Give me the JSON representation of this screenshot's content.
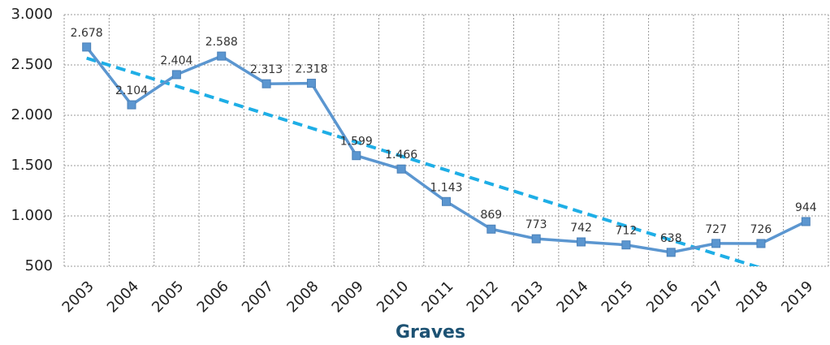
{
  "chart_data": {
    "type": "line",
    "x_label": "Graves",
    "categories": [
      "2003",
      "2004",
      "2005",
      "2006",
      "2007",
      "2008",
      "2009",
      "2010",
      "2011",
      "2012",
      "2013",
      "2014",
      "2015",
      "2016",
      "2017",
      "2018",
      "2019"
    ],
    "series": [
      {
        "name": "Graves",
        "color": "#5b96d0",
        "values": [
          2678,
          2104,
          2404,
          2588,
          2313,
          2318,
          1599,
          1466,
          1143,
          869,
          773,
          742,
          712,
          638,
          727,
          726,
          944
        ],
        "value_labels": [
          "2.678",
          "2.104",
          "2.404",
          "2.588",
          "2.313",
          "2.318",
          "1.599",
          "1.466",
          "1.143",
          "869",
          "773",
          "742",
          "712",
          "638",
          "727",
          "726",
          "944"
        ]
      }
    ],
    "trendline": {
      "type": "linear",
      "color": "#1eaee6"
    },
    "ylim": [
      500,
      3000
    ],
    "yticks": [
      500,
      {
        "value": 1000,
        "label": "1.000"
      },
      {
        "value": 1500,
        "label": "1.500"
      },
      {
        "value": 2000,
        "label": "2.000"
      },
      {
        "value": 2500,
        "label": "2.500"
      },
      {
        "value": 3000,
        "label": "3.000"
      }
    ],
    "grid": true
  }
}
